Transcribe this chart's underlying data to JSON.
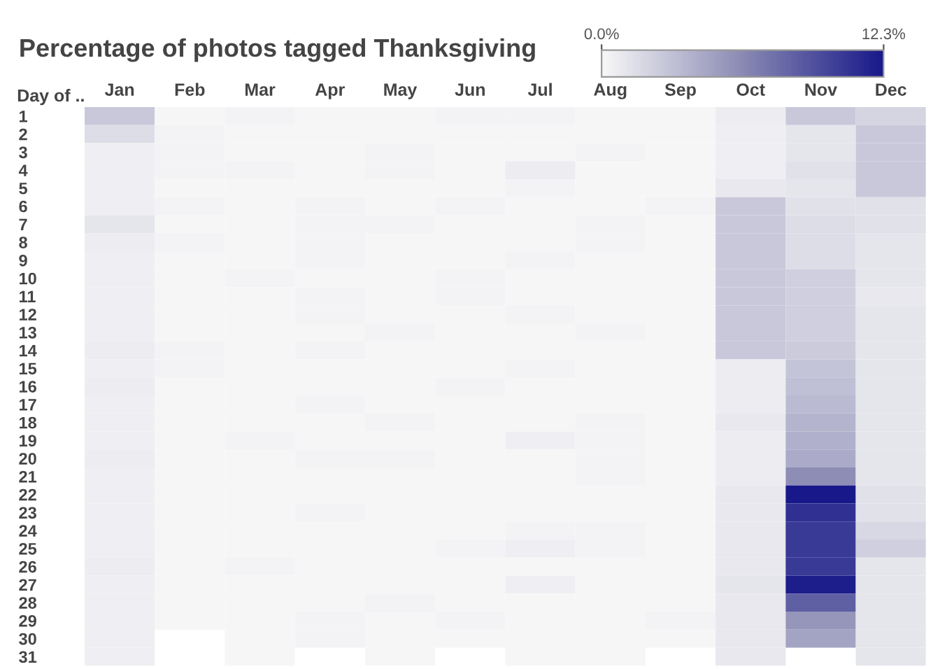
{
  "chart_data": {
    "type": "heatmap",
    "title": "Percentage of photos tagged Thanksgiving",
    "ylabel": "Day of ..",
    "categories": [
      "Jan",
      "Feb",
      "Mar",
      "Apr",
      "May",
      "Jun",
      "Jul",
      "Aug",
      "Sep",
      "Oct",
      "Nov",
      "Dec"
    ],
    "y_categories": [
      "1",
      "2",
      "3",
      "4",
      "5",
      "6",
      "7",
      "8",
      "9",
      "10",
      "11",
      "12",
      "13",
      "14",
      "15",
      "16",
      "17",
      "18",
      "19",
      "20",
      "21",
      "22",
      "23",
      "24",
      "25",
      "26",
      "27",
      "28",
      "29",
      "30",
      "31"
    ],
    "clim": [
      0,
      12.3
    ],
    "cticks": [
      {
        "value": 0,
        "label": "0.0%"
      },
      {
        "value": 12.3,
        "label": "12.3%"
      }
    ],
    "cells": [
      [
        2.7,
        0.1,
        0.3,
        0.1,
        0.1,
        0.3,
        0.3,
        0.1,
        0.1,
        0.7,
        2.7,
        2.0
      ],
      [
        1.5,
        0.3,
        0.1,
        0.1,
        0.1,
        0.1,
        0.1,
        0.1,
        0.1,
        0.5,
        1.1,
        2.7
      ],
      [
        0.5,
        0.3,
        0.1,
        0.1,
        0.3,
        0.1,
        0.1,
        0.3,
        0.1,
        0.5,
        1.1,
        2.7
      ],
      [
        0.5,
        0.3,
        0.3,
        0.1,
        0.3,
        0.1,
        0.7,
        0.1,
        0.1,
        0.5,
        1.3,
        2.7
      ],
      [
        0.5,
        0.1,
        0.1,
        0.1,
        0.1,
        0.1,
        0.3,
        0.1,
        0.1,
        0.9,
        1.1,
        2.7
      ],
      [
        0.5,
        0.3,
        0.1,
        0.3,
        0.1,
        0.3,
        0.1,
        0.1,
        0.3,
        2.7,
        1.3,
        1.3
      ],
      [
        1.1,
        0.1,
        0.1,
        0.3,
        0.3,
        0.1,
        0.1,
        0.3,
        0.1,
        2.7,
        1.5,
        1.3
      ],
      [
        0.7,
        0.3,
        0.1,
        0.3,
        0.1,
        0.1,
        0.1,
        0.3,
        0.1,
        2.7,
        1.5,
        1.1
      ],
      [
        0.5,
        0.1,
        0.1,
        0.3,
        0.1,
        0.1,
        0.3,
        0.1,
        0.1,
        2.7,
        1.5,
        1.1
      ],
      [
        0.5,
        0.1,
        0.3,
        0.1,
        0.1,
        0.3,
        0.1,
        0.1,
        0.1,
        2.7,
        2.3,
        1.1
      ],
      [
        0.5,
        0.1,
        0.1,
        0.3,
        0.1,
        0.3,
        0.1,
        0.1,
        0.1,
        2.7,
        2.3,
        0.9
      ],
      [
        0.5,
        0.1,
        0.1,
        0.3,
        0.1,
        0.1,
        0.3,
        0.1,
        0.1,
        2.7,
        2.3,
        1.1
      ],
      [
        0.5,
        0.1,
        0.1,
        0.1,
        0.3,
        0.1,
        0.1,
        0.3,
        0.1,
        2.7,
        2.3,
        1.1
      ],
      [
        0.7,
        0.3,
        0.1,
        0.3,
        0.1,
        0.1,
        0.1,
        0.1,
        0.1,
        2.7,
        2.5,
        1.1
      ],
      [
        0.5,
        0.3,
        0.1,
        0.1,
        0.1,
        0.1,
        0.3,
        0.1,
        0.1,
        0.7,
        2.9,
        1.1
      ],
      [
        0.7,
        0.1,
        0.1,
        0.1,
        0.1,
        0.3,
        0.1,
        0.1,
        0.1,
        0.7,
        3.2,
        1.1
      ],
      [
        0.5,
        0.1,
        0.1,
        0.3,
        0.1,
        0.1,
        0.1,
        0.1,
        0.1,
        0.7,
        3.5,
        1.1
      ],
      [
        0.5,
        0.1,
        0.1,
        0.1,
        0.3,
        0.1,
        0.1,
        0.3,
        0.1,
        0.9,
        3.8,
        1.1
      ],
      [
        0.5,
        0.1,
        0.3,
        0.1,
        0.1,
        0.1,
        0.5,
        0.3,
        0.1,
        0.7,
        4.0,
        1.1
      ],
      [
        0.7,
        0.1,
        0.1,
        0.3,
        0.3,
        0.1,
        0.1,
        0.3,
        0.1,
        0.7,
        4.3,
        1.1
      ],
      [
        0.5,
        0.1,
        0.1,
        0.1,
        0.1,
        0.1,
        0.1,
        0.3,
        0.1,
        0.7,
        6.0,
        1.1
      ],
      [
        0.5,
        0.1,
        0.1,
        0.1,
        0.1,
        0.1,
        0.1,
        0.1,
        0.1,
        0.9,
        12.3,
        1.3
      ],
      [
        0.5,
        0.1,
        0.1,
        0.3,
        0.1,
        0.1,
        0.1,
        0.1,
        0.1,
        0.9,
        11.0,
        1.3
      ],
      [
        0.5,
        0.1,
        0.1,
        0.1,
        0.1,
        0.1,
        0.3,
        0.3,
        0.1,
        0.9,
        10.5,
        1.8
      ],
      [
        0.5,
        0.1,
        0.1,
        0.1,
        0.1,
        0.3,
        0.5,
        0.3,
        0.1,
        0.9,
        10.5,
        2.3
      ],
      [
        0.7,
        0.1,
        0.3,
        0.1,
        0.1,
        0.1,
        0.1,
        0.1,
        0.1,
        0.9,
        10.5,
        1.1
      ],
      [
        0.5,
        0.1,
        0.1,
        0.1,
        0.1,
        0.1,
        0.5,
        0.1,
        0.1,
        1.1,
        12.0,
        1.1
      ],
      [
        0.5,
        0.1,
        0.1,
        0.1,
        0.3,
        0.1,
        0.1,
        0.1,
        0.1,
        0.9,
        8.5,
        1.1
      ],
      [
        0.5,
        0.1,
        0.1,
        0.3,
        0.1,
        0.3,
        0.1,
        0.1,
        0.3,
        0.9,
        5.5,
        1.1
      ],
      [
        0.5,
        null,
        0.1,
        0.3,
        0.1,
        0.1,
        0.1,
        0.1,
        0.1,
        0.9,
        4.8,
        1.1
      ],
      [
        0.5,
        null,
        0.1,
        null,
        0.1,
        null,
        0.1,
        0.1,
        null,
        0.9,
        null,
        1.1
      ]
    ]
  }
}
